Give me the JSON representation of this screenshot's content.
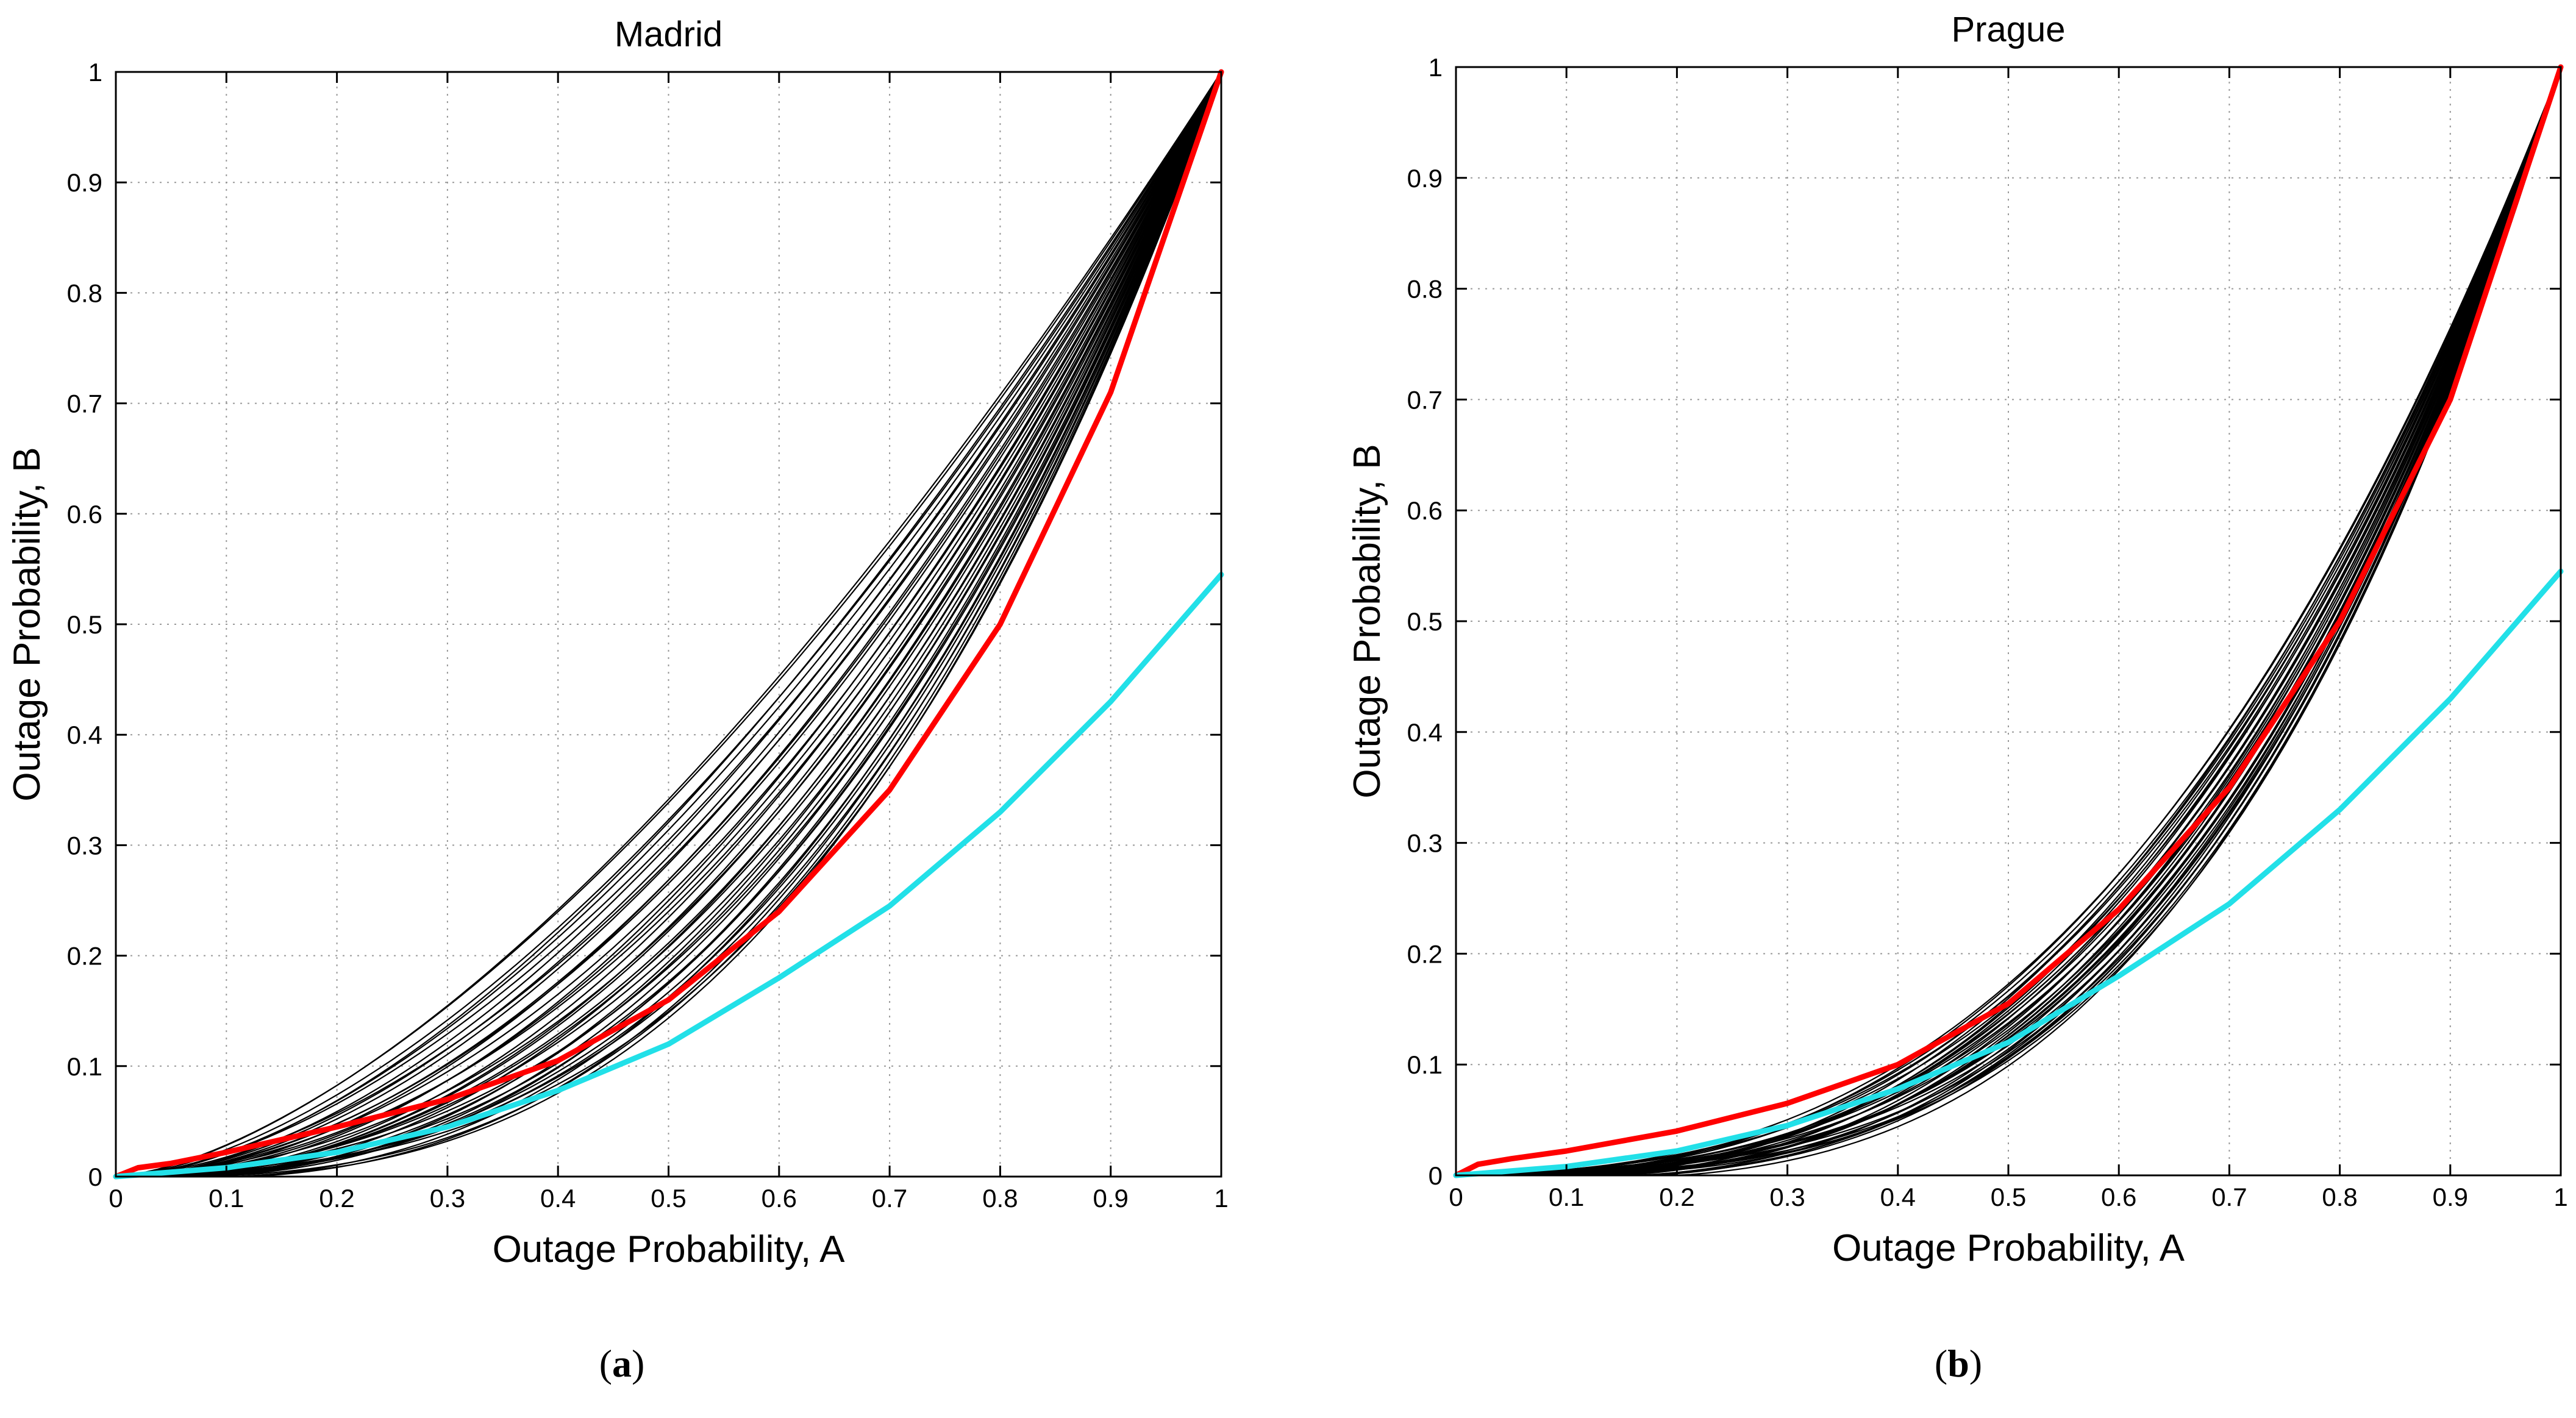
{
  "chart_data": [
    {
      "type": "line",
      "title": "Madrid",
      "xlabel": "Outage Probability, A",
      "ylabel": "Outage Probability, B",
      "xlim": [
        0,
        1
      ],
      "ylim": [
        0,
        1
      ],
      "xticks": [
        "0",
        "0.1",
        "0.2",
        "0.3",
        "0.4",
        "0.5",
        "0.6",
        "0.7",
        "0.8",
        "0.9",
        "1"
      ],
      "yticks": [
        "0",
        "0.1",
        "0.2",
        "0.3",
        "0.4",
        "0.5",
        "0.6",
        "0.7",
        "0.8",
        "0.9",
        "1"
      ],
      "grid": true,
      "caption_label": "a",
      "bundle": {
        "count": 40,
        "min_exponent": 1.55,
        "max_exponent": 2.8,
        "color": "#000000"
      },
      "series": [
        {
          "name": "red curve",
          "color": "#ff0000",
          "x": [
            0,
            0.02,
            0.05,
            0.1,
            0.2,
            0.3,
            0.4,
            0.5,
            0.6,
            0.7,
            0.8,
            0.9,
            1
          ],
          "y": [
            0,
            0.008,
            0.012,
            0.022,
            0.045,
            0.07,
            0.105,
            0.16,
            0.24,
            0.35,
            0.5,
            0.71,
            1
          ]
        },
        {
          "name": "cyan curve",
          "color": "#22e0e8",
          "x": [
            0,
            0.1,
            0.2,
            0.3,
            0.4,
            0.5,
            0.6,
            0.7,
            0.8,
            0.9,
            1
          ],
          "y": [
            0,
            0.008,
            0.022,
            0.045,
            0.078,
            0.12,
            0.18,
            0.245,
            0.33,
            0.43,
            0.545
          ]
        }
      ]
    },
    {
      "type": "line",
      "title": "Prague",
      "xlabel": "Outage Probability, A",
      "ylabel": "Outage Probability, B",
      "xlim": [
        0,
        1
      ],
      "ylim": [
        0,
        1
      ],
      "xticks": [
        "0",
        "0.1",
        "0.2",
        "0.3",
        "0.4",
        "0.5",
        "0.6",
        "0.7",
        "0.8",
        "0.9",
        "1"
      ],
      "yticks": [
        "0",
        "0.1",
        "0.2",
        "0.3",
        "0.4",
        "0.5",
        "0.6",
        "0.7",
        "0.8",
        "0.9",
        "1"
      ],
      "grid": true,
      "caption_label": "b",
      "bundle": {
        "count": 35,
        "min_exponent": 2.55,
        "max_exponent": 3.3,
        "color": "#000000"
      },
      "series": [
        {
          "name": "red curve",
          "color": "#ff0000",
          "x": [
            0,
            0.02,
            0.05,
            0.1,
            0.2,
            0.3,
            0.4,
            0.5,
            0.6,
            0.7,
            0.8,
            0.9,
            1
          ],
          "y": [
            0,
            0.01,
            0.015,
            0.022,
            0.04,
            0.065,
            0.1,
            0.155,
            0.24,
            0.35,
            0.5,
            0.7,
            1
          ]
        },
        {
          "name": "cyan curve",
          "color": "#22e0e8",
          "x": [
            0,
            0.1,
            0.2,
            0.3,
            0.4,
            0.5,
            0.6,
            0.7,
            0.8,
            0.9,
            1
          ],
          "y": [
            0,
            0.008,
            0.022,
            0.045,
            0.078,
            0.12,
            0.18,
            0.245,
            0.33,
            0.43,
            0.545
          ]
        }
      ]
    }
  ]
}
